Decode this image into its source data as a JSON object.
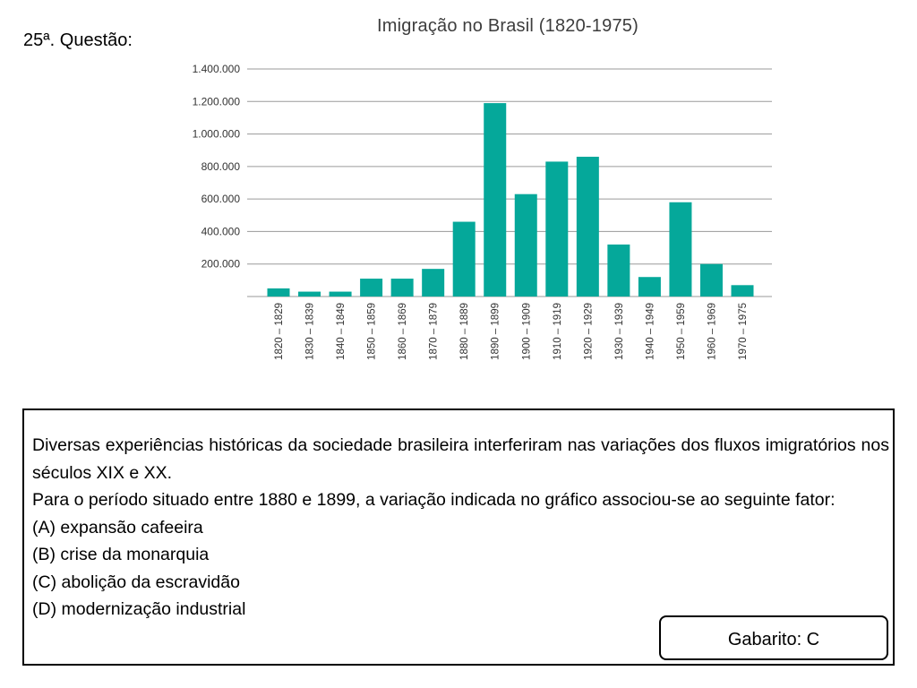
{
  "question_label": "25ª. Questão:",
  "chart_data": {
    "type": "bar",
    "title": "Imigração no Brasil (1820-1975)",
    "xlabel": "",
    "ylabel": "",
    "ylim": [
      0,
      1400000
    ],
    "yticks": [
      200000,
      400000,
      600000,
      800000,
      1000000,
      1200000,
      1400000
    ],
    "ytick_labels": [
      "200.000",
      "400.000",
      "600.000",
      "800.000",
      "1.000.000",
      "1.200.000",
      "1.400.000"
    ],
    "grid": true,
    "bar_color": "#05a89a",
    "categories": [
      "1820 – 1829",
      "1830 – 1839",
      "1840 – 1849",
      "1850 – 1859",
      "1860 – 1869",
      "1870 – 1879",
      "1880 – 1889",
      "1890 – 1899",
      "1900 – 1909",
      "1910 – 1919",
      "1920 – 1929",
      "1930 – 1939",
      "1940 – 1949",
      "1950 – 1959",
      "1960 – 1969",
      "1970 – 1975"
    ],
    "values": [
      50000,
      30000,
      30000,
      110000,
      110000,
      170000,
      460000,
      1190000,
      630000,
      830000,
      860000,
      320000,
      120000,
      580000,
      200000,
      70000
    ]
  },
  "question": {
    "paragraph1": "Diversas experiências históricas da sociedade brasileira interferiram nas variações dos fluxos imigratórios nos séculos XIX e XX.",
    "paragraph2": "Para o período situado entre 1880 e 1899, a variação indicada no gráfico associou-se ao seguinte fator:",
    "options": [
      "(A) expansão cafeeira",
      "(B) crise da monarquia",
      "(C) abolição da escravidão",
      "(D) modernização industrial"
    ]
  },
  "answer_key": "Gabarito: C"
}
